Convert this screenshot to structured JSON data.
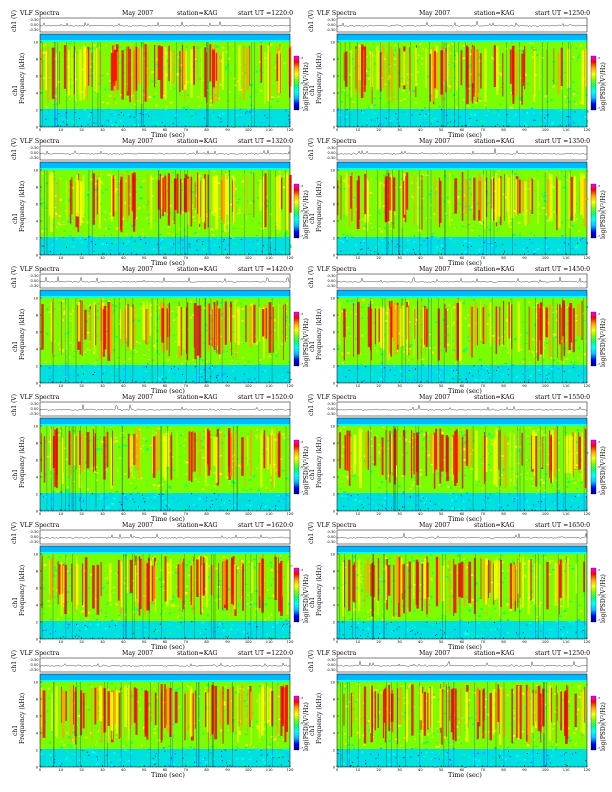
{
  "page": {
    "panel_template": {
      "program_title": "VLF Spectra",
      "month": "May 2007",
      "station": "station=KAG",
      "ch_axis_label": "ch1 (V)",
      "ch_axis_ticks": [
        "0.30",
        "0.00",
        "-0.30"
      ],
      "freq_axis_label": "Frequency (kHz)",
      "freq_axis_prefix": "ch1",
      "freq_ticks": [
        "0",
        "2",
        "4",
        "6",
        "8",
        "10"
      ],
      "time_axis_label": "Time (sec)",
      "time_ticks": [
        "0",
        "10",
        "20",
        "30",
        "40",
        "50",
        "60",
        "70",
        "80",
        "90",
        "100",
        "110",
        "120"
      ],
      "colorbar_label": "log(PSD)(V²/Hz)",
      "colorbar_ticks": [
        "-3",
        "-5",
        "-7"
      ]
    },
    "colors": {
      "spectrogram_scale": [
        "#00008b",
        "#0000ff",
        "#00bfff",
        "#00ffff",
        "#00ff7f",
        "#7cfc00",
        "#ffff00",
        "#ffa500",
        "#ff0000",
        "#ff00ff"
      ],
      "low_band": "#00e0e0",
      "upper_band": "#00b8ff",
      "trace": "#000000"
    }
  },
  "chart_data": [
    {
      "type": "heatmap",
      "title": "VLF Spectra",
      "month": "May 2007",
      "station": "KAG",
      "start_ut": "start UT =1220:0",
      "xlabel": "Time (sec)",
      "ylabel": "Frequency (kHz)",
      "xlim": [
        0,
        120
      ],
      "ylim": [
        0,
        10
      ],
      "colorbar_label": "log(PSD)(V²/Hz)",
      "series": [
        {
          "name": "ch1"
        }
      ]
    },
    {
      "type": "heatmap",
      "title": "VLF Spectra",
      "month": "May 2007",
      "station": "KAG",
      "start_ut": "start UT =1250:0",
      "xlabel": "Time (sec)",
      "ylabel": "Frequency (kHz)",
      "xlim": [
        0,
        120
      ],
      "ylim": [
        0,
        10
      ],
      "colorbar_label": "log(PSD)(V²/Hz)",
      "series": [
        {
          "name": "ch1"
        }
      ]
    },
    {
      "type": "heatmap",
      "title": "VLF Spectra",
      "month": "May 2007",
      "station": "KAG",
      "start_ut": "start UT =1320:0",
      "xlabel": "Time (sec)",
      "ylabel": "Frequency (kHz)",
      "xlim": [
        0,
        120
      ],
      "ylim": [
        0,
        10
      ],
      "colorbar_label": "log(PSD)(V²/Hz)",
      "series": [
        {
          "name": "ch1"
        }
      ]
    },
    {
      "type": "heatmap",
      "title": "VLF Spectra",
      "month": "May 2007",
      "station": "KAG",
      "start_ut": "start UT =1350:0",
      "xlabel": "Time (sec)",
      "ylabel": "Frequency (kHz)",
      "xlim": [
        0,
        120
      ],
      "ylim": [
        0,
        10
      ],
      "colorbar_label": "log(PSD)(V²/Hz)",
      "series": [
        {
          "name": "ch1"
        }
      ]
    },
    {
      "type": "heatmap",
      "title": "VLF Spectra",
      "month": "May 2007",
      "station": "KAG",
      "start_ut": "start UT =1420:0",
      "xlabel": "Time (sec)",
      "ylabel": "Frequency (kHz)",
      "xlim": [
        0,
        120
      ],
      "ylim": [
        0,
        10
      ],
      "colorbar_label": "log(PSD)(V²/Hz)",
      "series": [
        {
          "name": "ch1"
        }
      ]
    },
    {
      "type": "heatmap",
      "title": "VLF Spectra",
      "month": "May 2007",
      "station": "KAG",
      "start_ut": "start UT =1450:0",
      "xlabel": "Time (sec)",
      "ylabel": "Frequency (kHz)",
      "xlim": [
        0,
        120
      ],
      "ylim": [
        0,
        10
      ],
      "colorbar_label": "log(PSD)(V²/Hz)",
      "series": [
        {
          "name": "ch1"
        }
      ]
    },
    {
      "type": "heatmap",
      "title": "VLF Spectra",
      "month": "May 2007",
      "station": "KAG",
      "start_ut": "start UT =1520:0",
      "xlabel": "Time (sec)",
      "ylabel": "Frequency (kHz)",
      "xlim": [
        0,
        120
      ],
      "ylim": [
        0,
        10
      ],
      "colorbar_label": "log(PSD)(V²/Hz)",
      "series": [
        {
          "name": "ch1"
        }
      ]
    },
    {
      "type": "heatmap",
      "title": "VLF Spectra",
      "month": "May 2007",
      "station": "KAG",
      "start_ut": "start UT =1550:0",
      "xlabel": "Time (sec)",
      "ylabel": "Frequency (kHz)",
      "xlim": [
        0,
        120
      ],
      "ylim": [
        0,
        10
      ],
      "colorbar_label": "log(PSD)(V²/Hz)",
      "series": [
        {
          "name": "ch1"
        }
      ]
    },
    {
      "type": "heatmap",
      "title": "VLF Spectra",
      "month": "May 2007",
      "station": "KAG",
      "start_ut": "start UT =1620:0",
      "xlabel": "Time (sec)",
      "ylabel": "Frequency (kHz)",
      "xlim": [
        0,
        120
      ],
      "ylim": [
        0,
        10
      ],
      "colorbar_label": "log(PSD)(V²/Hz)",
      "series": [
        {
          "name": "ch1"
        }
      ]
    },
    {
      "type": "heatmap",
      "title": "VLF Spectra",
      "month": "May 2007",
      "station": "KAG",
      "start_ut": "start UT =1650:0",
      "xlabel": "Time (sec)",
      "ylabel": "Frequency (kHz)",
      "xlim": [
        0,
        120
      ],
      "ylim": [
        0,
        10
      ],
      "colorbar_label": "log(PSD)(V²/Hz)",
      "series": [
        {
          "name": "ch1"
        }
      ]
    },
    {
      "type": "heatmap",
      "title": "VLF Spectra",
      "month": "May 2007",
      "station": "KAG",
      "start_ut": "start UT =1220:0",
      "xlabel": "Time (sec)",
      "ylabel": "Frequency (kHz)",
      "xlim": [
        0,
        120
      ],
      "ylim": [
        0,
        10
      ],
      "colorbar_label": "log(PSD)(V²/Hz)",
      "series": [
        {
          "name": "ch1"
        }
      ]
    },
    {
      "type": "heatmap",
      "title": "VLF Spectra",
      "month": "May 2007",
      "station": "KAG",
      "start_ut": "start UT =1250:0",
      "xlabel": "Time (sec)",
      "ylabel": "Frequency (kHz)",
      "xlim": [
        0,
        120
      ],
      "ylim": [
        0,
        10
      ],
      "colorbar_label": "log(PSD)(V²/Hz)",
      "series": [
        {
          "name": "ch1"
        }
      ]
    }
  ]
}
